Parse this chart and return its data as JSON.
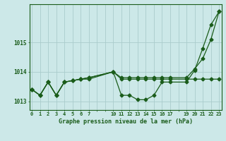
{
  "title": "Graphe pression niveau de la mer (hPa)",
  "bg_color": "#cce8e8",
  "grid_color": "#aacccc",
  "line_color": "#1a5c1a",
  "ylim": [
    1012.7,
    1016.3
  ],
  "yticks": [
    1013,
    1014,
    1015
  ],
  "xlim": [
    0,
    23
  ],
  "xtick_labels": [
    "0",
    "1",
    "2",
    "3",
    "4",
    "5",
    "6",
    "7",
    "",
    "",
    "10",
    "11",
    "12",
    "13",
    "14",
    "15",
    "16",
    "17",
    "",
    "19",
    "20",
    "21",
    "22",
    "23"
  ],
  "series1_x": [
    0,
    1,
    2,
    3,
    4,
    5,
    6,
    7,
    10,
    11,
    12,
    13,
    14,
    15,
    16,
    17,
    19,
    20,
    21,
    22,
    23
  ],
  "series1_y": [
    1013.4,
    1013.2,
    1013.65,
    1013.2,
    1013.65,
    1013.7,
    1013.75,
    1013.75,
    1014.0,
    1013.75,
    1013.75,
    1013.75,
    1013.75,
    1013.75,
    1013.75,
    1013.75,
    1013.75,
    1013.75,
    1013.75,
    1013.75,
    1013.75
  ],
  "series2_x": [
    0,
    1,
    2,
    3,
    4,
    5,
    6,
    7,
    10,
    11,
    12,
    13,
    14,
    15,
    16,
    17,
    19,
    20,
    21,
    22,
    23
  ],
  "series2_y": [
    1013.4,
    1013.2,
    1013.65,
    1013.2,
    1013.65,
    1013.7,
    1013.75,
    1013.8,
    1014.0,
    1013.2,
    1013.2,
    1013.05,
    1013.05,
    1013.2,
    1013.65,
    1013.65,
    1013.65,
    1014.05,
    1014.8,
    1015.6,
    1016.05
  ],
  "series3_x": [
    0,
    1,
    2,
    3,
    4,
    5,
    6,
    7,
    10,
    11,
    12,
    13,
    14,
    15,
    16,
    17,
    19,
    20,
    21,
    22,
    23
  ],
  "series3_y": [
    1013.4,
    1013.2,
    1013.65,
    1013.2,
    1013.65,
    1013.7,
    1013.75,
    1013.8,
    1014.0,
    1013.8,
    1013.8,
    1013.8,
    1013.8,
    1013.8,
    1013.8,
    1013.8,
    1013.8,
    1014.1,
    1014.45,
    1015.1,
    1016.05
  ]
}
